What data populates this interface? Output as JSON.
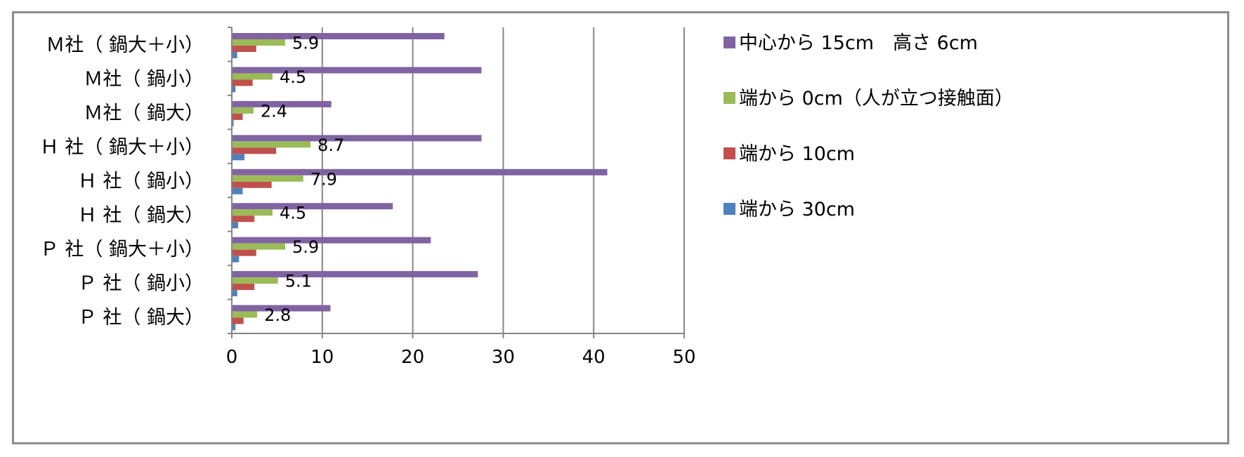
{
  "chart_data": {
    "type": "bar",
    "orientation": "horizontal",
    "categories": [
      "Ｍ社（ 鍋大＋小）",
      "Ｍ社（ 鍋小）",
      "Ｍ社（ 鍋大）",
      "Ｈ 社（ 鍋大＋小）",
      "Ｈ 社（ 鍋小）",
      "Ｈ 社（ 鍋大）",
      "Ｐ 社（ 鍋大＋小）",
      "Ｐ 社（ 鍋小）",
      "Ｐ 社（ 鍋大）"
    ],
    "series": [
      {
        "name": "中心から 15cm　高さ 6cm",
        "color": "#8064a2",
        "values": [
          23.5,
          27.6,
          11.0,
          27.6,
          41.5,
          17.8,
          22.0,
          27.2,
          10.9
        ]
      },
      {
        "name": "端から 0cm（人が立つ接触面）",
        "color": "#9bbb59",
        "values": [
          5.9,
          4.5,
          2.4,
          8.7,
          7.9,
          4.5,
          5.9,
          5.1,
          2.8
        ]
      },
      {
        "name": "端から 10cm",
        "color": "#c0504d",
        "values": [
          2.7,
          2.3,
          1.2,
          4.9,
          4.4,
          2.5,
          2.7,
          2.5,
          1.3
        ]
      },
      {
        "name": "端から 30cm",
        "color": "#4f81bd",
        "values": [
          0.6,
          0.4,
          0.2,
          1.4,
          1.2,
          0.7,
          0.8,
          0.6,
          0.4
        ]
      }
    ],
    "data_labels": [
      "5.9",
      "4.5",
      "2.4",
      "8.7",
      "7.9",
      "4.5",
      "5.9",
      "5.1",
      "2.8"
    ],
    "data_label_series": 1,
    "xlim": [
      0,
      50
    ],
    "xticks": [
      "0",
      "10",
      "20",
      "30",
      "40",
      "50"
    ],
    "xtick_values": [
      0,
      10,
      20,
      30,
      40,
      50
    ],
    "grid": "vertical",
    "legend_position": "right",
    "gridline_color": "#868686",
    "axis_color": "#868686"
  }
}
